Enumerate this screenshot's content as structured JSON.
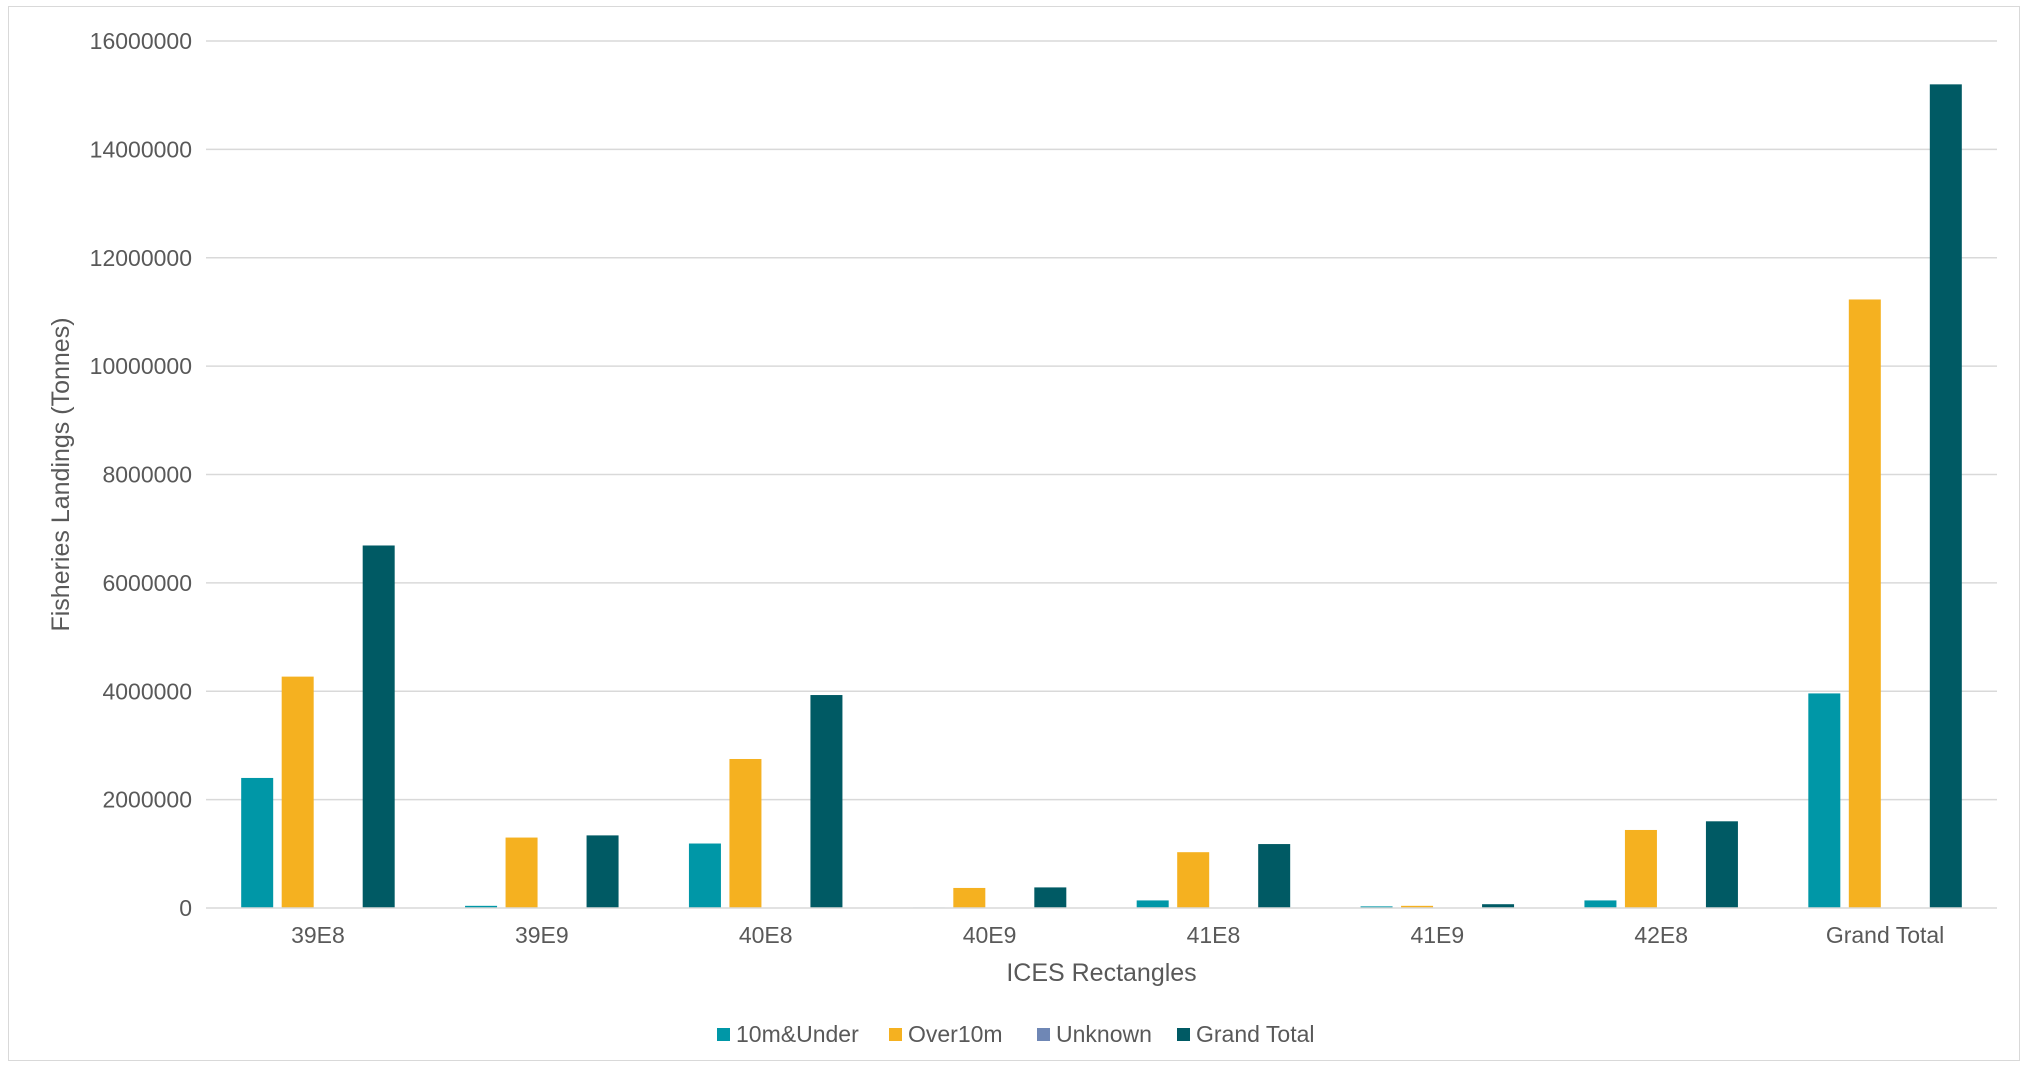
{
  "chart_data": {
    "type": "bar",
    "xlabel": "ICES Rectangles",
    "ylabel": "Fisheries Landings (Tonnes)",
    "categories": [
      "39E8",
      "39E9",
      "40E8",
      "40E9",
      "41E8",
      "41E9",
      "42E8",
      "Grand Total"
    ],
    "ylim": [
      0,
      16000000
    ],
    "yticks": [
      0,
      2000000,
      4000000,
      6000000,
      8000000,
      10000000,
      12000000,
      14000000,
      16000000
    ],
    "ytick_labels": [
      "0",
      "2000000",
      "4000000",
      "6000000",
      "8000000",
      "10000000",
      "12000000",
      "14000000",
      "16000000"
    ],
    "grid": "horizontal",
    "legend_position": "bottom",
    "series": [
      {
        "name": "10m&Under",
        "color": "#0097a7",
        "values": [
          2400000,
          40000,
          1190000,
          10000,
          140000,
          30000,
          140000,
          3960000
        ]
      },
      {
        "name": "Over10m",
        "color": "#f5b120",
        "values": [
          4270000,
          1300000,
          2750000,
          370000,
          1030000,
          40000,
          1440000,
          11230000
        ]
      },
      {
        "name": "Unknown",
        "color": "#6f87b5",
        "values": [
          0,
          0,
          0,
          0,
          0,
          0,
          0,
          0
        ]
      },
      {
        "name": "Grand Total",
        "color": "#005a64",
        "values": [
          6690000,
          1340000,
          3930000,
          380000,
          1180000,
          70000,
          1600000,
          15200000
        ]
      }
    ]
  }
}
